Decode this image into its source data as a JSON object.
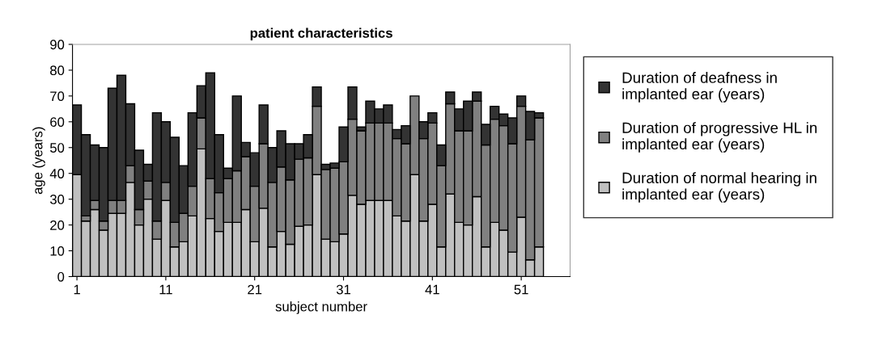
{
  "chart_data": {
    "type": "bar",
    "stacked": true,
    "title": "patient characteristics",
    "xlabel": "subject number",
    "ylabel": "age (years)",
    "categories": [
      "1",
      null,
      null,
      null,
      null,
      null,
      null,
      null,
      null,
      null,
      "11",
      null,
      null,
      null,
      null,
      null,
      null,
      null,
      null,
      null,
      "21",
      null,
      null,
      null,
      null,
      null,
      null,
      null,
      null,
      null,
      "31",
      null,
      null,
      null,
      null,
      null,
      null,
      null,
      null,
      null,
      "41",
      null,
      null,
      null,
      null,
      null,
      null,
      null,
      null,
      null,
      "51",
      null,
      null,
      null,
      null,
      null
    ],
    "series": [
      {
        "name": "Duration of normal hearing in implanted ear (years)",
        "color": "#c0c0c0",
        "values": [
          39.5,
          21.5,
          26,
          18,
          24.5,
          24.5,
          36.5,
          20,
          30,
          14.5,
          29.5,
          11.5,
          13.5,
          23.5,
          49.5,
          22.5,
          17.5,
          21,
          21,
          26,
          13.5,
          26.5,
          11.5,
          17.5,
          12.5,
          19.5,
          20,
          39.5,
          14.5,
          13.5,
          16.5,
          31.5,
          28,
          29.5,
          29.5,
          29.5,
          23.5,
          21.5,
          39.5,
          21.5,
          28,
          11.5,
          32,
          21,
          20,
          31,
          11.5,
          21,
          18,
          9.5,
          23,
          6.5,
          11.5,
          null,
          null,
          null
        ]
      },
      {
        "name": "Duration of progressive HL in implanted ear (years)",
        "color": "#808080",
        "values": [
          0,
          2,
          3.5,
          3.5,
          5,
          5,
          6.5,
          6,
          7,
          7,
          7,
          9.5,
          11,
          11.5,
          12,
          15.5,
          15,
          17,
          20,
          20.5,
          21.5,
          25,
          25,
          25,
          25,
          26,
          26,
          26.5,
          27,
          28.5,
          28,
          29.5,
          28.5,
          30,
          30,
          30,
          30,
          30,
          30.5,
          32,
          31.5,
          31.5,
          35,
          35.5,
          36.5,
          37,
          39.5,
          40,
          40.5,
          42,
          43,
          46.5,
          50,
          null,
          null,
          null
        ]
      },
      {
        "name": "Duration of deafness in implanted ear (years)",
        "color": "#333333",
        "values": [
          27,
          31.5,
          21.5,
          28.5,
          43.5,
          48.5,
          24,
          23,
          6.5,
          42,
          23.5,
          33,
          18.5,
          28.5,
          12.5,
          41,
          22.5,
          4,
          29,
          5.5,
          13,
          15,
          13.5,
          14,
          14,
          6,
          9,
          7.5,
          2,
          2,
          13.5,
          12.5,
          1.5,
          8.5,
          5.5,
          7,
          3.5,
          7,
          0,
          6.5,
          4,
          8,
          4.5,
          8.5,
          11.5,
          3.5,
          8,
          5,
          4.5,
          10,
          4,
          11,
          2,
          null,
          null,
          null
        ]
      }
    ],
    "ylim": [
      0,
      90
    ],
    "yticks": [
      0,
      10,
      20,
      30,
      40,
      50,
      60,
      70,
      80,
      90
    ],
    "grid": false,
    "legend": "right"
  }
}
